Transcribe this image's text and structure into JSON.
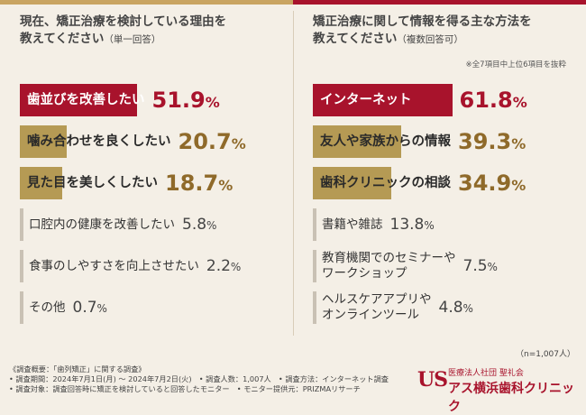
{
  "chart_data": [
    {
      "type": "bar",
      "title": "現在、矯正治療を検討している理由を\n教えてください",
      "subtitle": "（単一回答）",
      "categories": [
        "歯並びを改善したい",
        "噛み合わせを良くしたい",
        "見た目を美しくしたい",
        "口腔内の健康を改善したい",
        "食事のしやすさを向上させたい",
        "その他"
      ],
      "values": [
        51.9,
        20.7,
        18.7,
        5.8,
        2.2,
        0.7
      ],
      "unit": "%"
    },
    {
      "type": "bar",
      "title": "矯正治療に関して情報を得る主な方法を\n教えてください",
      "subtitle": "（複数回答可）",
      "note": "※全7項目中上位6項目を抜粋",
      "categories": [
        "インターネット",
        "友人や家族からの情報",
        "歯科クリニックの相談",
        "書籍や雑誌",
        "教育機関でのセミナーや\nワークショップ",
        "ヘルスケアアプリや\nオンラインツール"
      ],
      "values": [
        61.8,
        39.3,
        34.9,
        13.8,
        7.5,
        4.8
      ],
      "unit": "%"
    }
  ],
  "n_note": "（n=1,007人）",
  "footer": [
    "《調査概要：「歯列矯正」に関する調査》",
    "• 調査期間：2024年7月1日(月) 〜 2024年7月2日(火)　• 調査人数：1,007人　• 調査方法：インターネット調査",
    "• 調査対象：調査回答時に矯正を検討していると回答したモニター　• モニター提供元：PRIZMAリサーチ"
  ],
  "logo": {
    "mark": "US",
    "org": "医療法人社団 聖礼会",
    "name": "アス横浜歯科クリニック"
  },
  "colors": {
    "accent_red": "#a8132c",
    "gold": "#b59a54",
    "grey": "#c9c1b4",
    "background": "#f4efe6"
  }
}
